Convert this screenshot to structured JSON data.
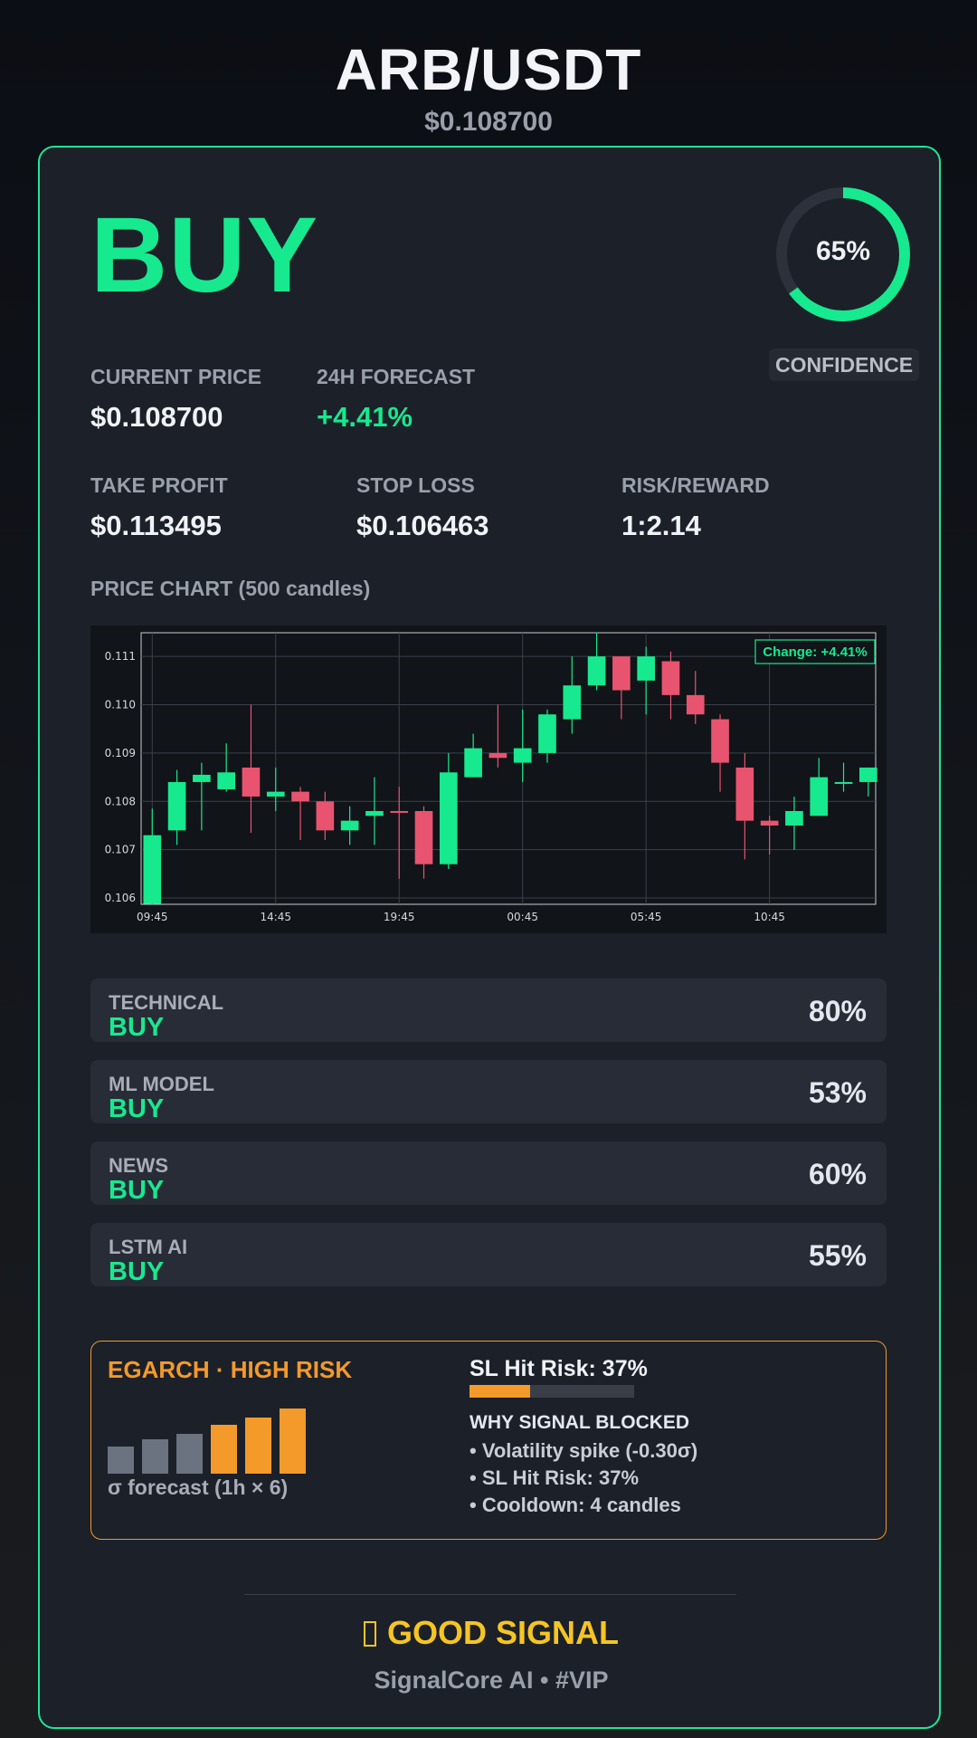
{
  "header": {
    "pair": "ARB/USDT",
    "price": "$0.108700"
  },
  "signal": {
    "direction": "BUY",
    "confidence": 0.65,
    "confidence_text": "65%",
    "confidence_label": "CONFIDENCE"
  },
  "metrics": {
    "current_price_label": "CURRENT PRICE",
    "current_price": "$0.108700",
    "forecast_label": "24H FORECAST",
    "forecast": "+4.41%",
    "take_profit_label": "TAKE PROFIT",
    "take_profit": "$0.113495",
    "stop_loss_label": "STOP LOSS",
    "stop_loss": "$0.106463",
    "risk_reward_label": "RISK/REWARD",
    "risk_reward": "1:2.14"
  },
  "chart_title": "PRICE CHART (500 candles)",
  "chart_data": {
    "type": "candlestick",
    "badge": "Change: +4.41%",
    "y_ticks": [
      "0.106",
      "0.107",
      "0.108",
      "0.109",
      "0.110",
      "0.111"
    ],
    "ylim": [
      0.10587,
      0.11149
    ],
    "x_tick_labels": [
      "09:45",
      "14:45",
      "19:45",
      "00:45",
      "05:45",
      "10:45"
    ],
    "x_tick_index": [
      0,
      5,
      10,
      15,
      20,
      25
    ],
    "grid": true,
    "candles": [
      {
        "o": 0.10588,
        "h": 0.10785,
        "l": 0.10588,
        "c": 0.1073
      },
      {
        "o": 0.1074,
        "h": 0.10865,
        "l": 0.1071,
        "c": 0.1084
      },
      {
        "o": 0.1084,
        "h": 0.1088,
        "l": 0.1074,
        "c": 0.10855
      },
      {
        "o": 0.10825,
        "h": 0.1092,
        "l": 0.1082,
        "c": 0.1086
      },
      {
        "o": 0.1087,
        "h": 0.11,
        "l": 0.10735,
        "c": 0.1081
      },
      {
        "o": 0.1081,
        "h": 0.1087,
        "l": 0.1078,
        "c": 0.1082
      },
      {
        "o": 0.1082,
        "h": 0.1083,
        "l": 0.1072,
        "c": 0.108
      },
      {
        "o": 0.108,
        "h": 0.1082,
        "l": 0.1072,
        "c": 0.1074
      },
      {
        "o": 0.1074,
        "h": 0.1079,
        "l": 0.1071,
        "c": 0.1076
      },
      {
        "o": 0.1077,
        "h": 0.1085,
        "l": 0.1071,
        "c": 0.1078
      },
      {
        "o": 0.1078,
        "h": 0.1083,
        "l": 0.1064,
        "c": 0.10778
      },
      {
        "o": 0.1078,
        "h": 0.1079,
        "l": 0.1064,
        "c": 0.1067
      },
      {
        "o": 0.1067,
        "h": 0.109,
        "l": 0.1066,
        "c": 0.1086
      },
      {
        "o": 0.1085,
        "h": 0.1094,
        "l": 0.1085,
        "c": 0.1091
      },
      {
        "o": 0.109,
        "h": 0.11,
        "l": 0.1087,
        "c": 0.1089
      },
      {
        "o": 0.1088,
        "h": 0.1099,
        "l": 0.1084,
        "c": 0.1091
      },
      {
        "o": 0.109,
        "h": 0.1099,
        "l": 0.1088,
        "c": 0.1098
      },
      {
        "o": 0.1097,
        "h": 0.111,
        "l": 0.1094,
        "c": 0.1104
      },
      {
        "o": 0.1104,
        "h": 0.1115,
        "l": 0.1103,
        "c": 0.111
      },
      {
        "o": 0.111,
        "h": 0.111,
        "l": 0.1097,
        "c": 0.1103
      },
      {
        "o": 0.1105,
        "h": 0.1112,
        "l": 0.1098,
        "c": 0.111
      },
      {
        "o": 0.1109,
        "h": 0.1111,
        "l": 0.1097,
        "c": 0.1102
      },
      {
        "o": 0.1102,
        "h": 0.1107,
        "l": 0.1096,
        "c": 0.1098
      },
      {
        "o": 0.1097,
        "h": 0.1098,
        "l": 0.1082,
        "c": 0.1088
      },
      {
        "o": 0.1087,
        "h": 0.109,
        "l": 0.1068,
        "c": 0.1076
      },
      {
        "o": 0.1076,
        "h": 0.1077,
        "l": 0.1069,
        "c": 0.1075
      },
      {
        "o": 0.1075,
        "h": 0.1081,
        "l": 0.107,
        "c": 0.1078
      },
      {
        "o": 0.1077,
        "h": 0.1089,
        "l": 0.1077,
        "c": 0.1085
      },
      {
        "o": 0.1084,
        "h": 0.1088,
        "l": 0.1082,
        "c": 0.1084
      },
      {
        "o": 0.1084,
        "h": 0.1087,
        "l": 0.1081,
        "c": 0.1087
      }
    ]
  },
  "sources": [
    {
      "name": "TECHNICAL",
      "signal": "BUY",
      "pct": "80%"
    },
    {
      "name": "ML MODEL",
      "signal": "BUY",
      "pct": "53%"
    },
    {
      "name": "NEWS",
      "signal": "BUY",
      "pct": "60%"
    },
    {
      "name": "LSTM AI",
      "signal": "BUY",
      "pct": "55%"
    }
  ],
  "risk": {
    "title": "EGARCH · HIGH RISK",
    "sigma_values": [
      0.38,
      0.47,
      0.55,
      0.67,
      0.77,
      0.9
    ],
    "sigma_label": "σ forecast (1h × 6)",
    "sl_title": "SL Hit Risk: 37%",
    "sl_value": 0.37,
    "why_title": "WHY SIGNAL BLOCKED",
    "why_items": [
      "• Volatility spike (-0.30σ)",
      "• SL Hit Risk: 37%",
      "• Cooldown: 4 candles"
    ]
  },
  "footer": {
    "verdict": "GOOD SIGNAL",
    "verdict_icon": "box-glyph-icon",
    "brand": "SignalCore AI • #VIP"
  },
  "colors": {
    "accent": "#17e98f",
    "bear": "#e8546f",
    "warning": "#f39a2a",
    "gold": "#f5c523"
  }
}
